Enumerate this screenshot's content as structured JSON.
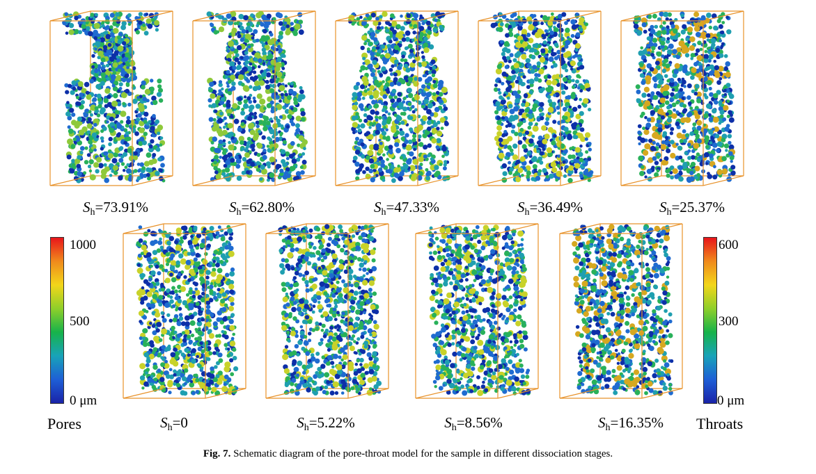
{
  "top_row": [
    {
      "sh_value": "=73.91%",
      "fill": 0.78,
      "colors": [
        "#0d2fa8",
        "#1f6bd0",
        "#1f9fb0",
        "#29b15a",
        "#8fc93a"
      ]
    },
    {
      "sh_value": "=62.80%",
      "fill": 0.86,
      "colors": [
        "#0d2fa8",
        "#1f6bd0",
        "#1f9fb0",
        "#29b15a",
        "#8fc93a"
      ]
    },
    {
      "sh_value": "=47.33%",
      "fill": 0.92,
      "colors": [
        "#0d2fa8",
        "#1f6bd0",
        "#1f9fb0",
        "#29b15a",
        "#b7d12d"
      ]
    },
    {
      "sh_value": "=36.49%",
      "fill": 0.96,
      "colors": [
        "#0d2fa8",
        "#1f6bd0",
        "#1f9fb0",
        "#29b15a",
        "#c8d22a"
      ]
    },
    {
      "sh_value": "=25.37%",
      "fill": 0.98,
      "colors": [
        "#0d2fa8",
        "#1f6bd0",
        "#1f9fb0",
        "#29b15a",
        "#d6a820"
      ]
    }
  ],
  "bottom_row": [
    {
      "sh_value": "=0",
      "fill": 1.0,
      "colors": [
        "#0d2fa8",
        "#1f6bd0",
        "#1f9fb0",
        "#29b15a",
        "#c8d22a"
      ]
    },
    {
      "sh_value": "=5.22%",
      "fill": 1.0,
      "colors": [
        "#0d2fa8",
        "#1f6bd0",
        "#1f9fb0",
        "#29b15a",
        "#c8d22a"
      ]
    },
    {
      "sh_value": "=8.56%",
      "fill": 1.0,
      "colors": [
        "#0d2fa8",
        "#1f6bd0",
        "#1f9fb0",
        "#29b15a",
        "#c8d22a"
      ]
    },
    {
      "sh_value": "=16.35%",
      "fill": 1.0,
      "colors": [
        "#0d2fa8",
        "#1f6bd0",
        "#1f9fb0",
        "#29b15a",
        "#d6a820"
      ]
    }
  ],
  "sh_symbol": "S",
  "sh_subscript": "h",
  "pores_scale": {
    "label": "Pores",
    "max": "1000",
    "mid": "500",
    "min": "0 μm"
  },
  "throats_scale": {
    "label": "Throats",
    "max": "600",
    "mid": "300",
    "min": "0 μm"
  },
  "colorbar_colors": [
    "#e8151b",
    "#f08a1c",
    "#f2d61a",
    "#8fcf2a",
    "#17b34a",
    "#18a3b8",
    "#1e5fd6",
    "#1a23a8"
  ],
  "box_color": "#e8922a",
  "caption": {
    "label": "Fig. 7.",
    "text": " Schematic diagram of the pore-throat model for the sample in different dissociation stages."
  }
}
